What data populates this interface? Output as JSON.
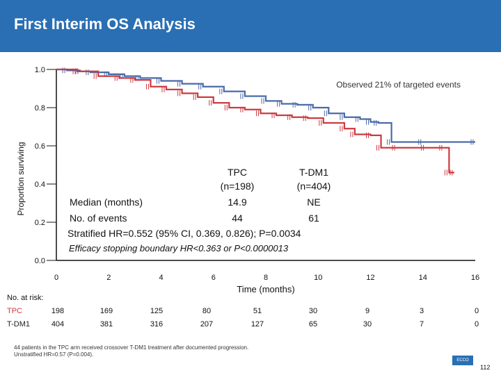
{
  "header": {
    "title": "First Interim OS Analysis"
  },
  "chart_data": {
    "type": "line",
    "title": "",
    "xlabel": "Time (months)",
    "ylabel": "Proportion surviving",
    "xlim": [
      0,
      16
    ],
    "ylim": [
      0,
      1.0
    ],
    "xticks": [
      0,
      2,
      4,
      6,
      8,
      10,
      12,
      14,
      16
    ],
    "yticks": [
      0.0,
      0.2,
      0.4,
      0.6,
      0.8,
      1.0
    ],
    "ytick_labels": [
      "0.0",
      "0.2",
      "0.4",
      "0.6",
      "0.8",
      "1.0"
    ],
    "annotation": "Observed 21% of targeted events",
    "series": [
      {
        "name": "T-DM1",
        "color": "#4a6aa8",
        "points": [
          [
            0,
            1.0
          ],
          [
            0.4,
            0.995
          ],
          [
            0.9,
            0.99
          ],
          [
            1.3,
            0.985
          ],
          [
            2.0,
            0.975
          ],
          [
            2.6,
            0.965
          ],
          [
            3.2,
            0.955
          ],
          [
            4.0,
            0.94
          ],
          [
            4.8,
            0.925
          ],
          [
            5.6,
            0.91
          ],
          [
            6.4,
            0.885
          ],
          [
            7.2,
            0.86
          ],
          [
            8.0,
            0.835
          ],
          [
            8.6,
            0.82
          ],
          [
            9.2,
            0.815
          ],
          [
            9.8,
            0.8
          ],
          [
            10.4,
            0.77
          ],
          [
            11.0,
            0.75
          ],
          [
            11.6,
            0.74
          ],
          [
            12.0,
            0.725
          ],
          [
            12.3,
            0.72
          ],
          [
            12.8,
            0.62
          ],
          [
            14.0,
            0.62
          ],
          [
            16.0,
            0.62
          ]
        ]
      },
      {
        "name": "TPC",
        "color": "#cc3a40",
        "points": [
          [
            0,
            1.0
          ],
          [
            0.8,
            0.99
          ],
          [
            1.6,
            0.965
          ],
          [
            2.4,
            0.955
          ],
          [
            3.0,
            0.945
          ],
          [
            3.6,
            0.91
          ],
          [
            4.2,
            0.895
          ],
          [
            4.8,
            0.875
          ],
          [
            5.4,
            0.855
          ],
          [
            6.0,
            0.825
          ],
          [
            6.6,
            0.8
          ],
          [
            7.2,
            0.79
          ],
          [
            7.8,
            0.77
          ],
          [
            8.4,
            0.76
          ],
          [
            9.0,
            0.75
          ],
          [
            9.6,
            0.745
          ],
          [
            10.2,
            0.72
          ],
          [
            11.0,
            0.69
          ],
          [
            11.4,
            0.66
          ],
          [
            12.0,
            0.655
          ],
          [
            12.4,
            0.59
          ],
          [
            13.0,
            0.59
          ],
          [
            14.1,
            0.59
          ],
          [
            14.8,
            0.59
          ],
          [
            15.0,
            0.46
          ],
          [
            15.2,
            0.46
          ]
        ]
      }
    ],
    "stats": {
      "col_tpc": "TPC",
      "col_tdm1": "T-DM1",
      "n_tpc": "(n=198)",
      "n_tdm1": "(n=404)",
      "median_label": "Median (months)",
      "median_tpc": "14.9",
      "median_tdm1": "NE",
      "events_label": "No. of events",
      "events_tpc": "44",
      "events_tdm1": "61",
      "hr_line": "Stratified HR=0.552 (95% CI, 0.369, 0.826); P=0.0034",
      "boundary_line": "Efficacy stopping boundary HR<0.363 or P<0.0000013"
    },
    "risk_table": {
      "title": "No. at risk:",
      "rows": [
        {
          "label": "TPC",
          "color": "#cc3a40",
          "values": [
            "198",
            "169",
            "125",
            "80",
            "51",
            "30",
            "9",
            "3",
            "0"
          ]
        },
        {
          "label": "T-DM1",
          "color": "#222222",
          "values": [
            "404",
            "381",
            "316",
            "207",
            "127",
            "65",
            "30",
            "7",
            "0"
          ]
        }
      ]
    }
  },
  "footnote": {
    "line1": "44 patients in the TPC arm received crossover T-DM1 treatment after documented progression.",
    "line2": "Unstratified HR=0.57 (P=0.004)."
  },
  "logo": {
    "text": "ECCO"
  },
  "page_number": "112"
}
